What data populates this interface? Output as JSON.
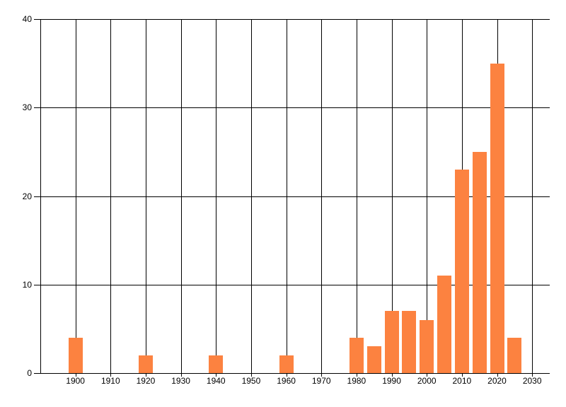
{
  "chart_data": {
    "type": "bar",
    "title": "",
    "xlabel": "",
    "ylabel": "",
    "x": [
      1900,
      1920,
      1940,
      1960,
      1980,
      1985,
      1990,
      1995,
      2000,
      2005,
      2010,
      2015,
      2020,
      2025
    ],
    "values": [
      4,
      2,
      2,
      2,
      4,
      3,
      7,
      7,
      6,
      11,
      23,
      25,
      35,
      4
    ],
    "x_ticks": [
      1900,
      1910,
      1920,
      1930,
      1940,
      1950,
      1960,
      1970,
      1980,
      1990,
      2000,
      2010,
      2020,
      2030
    ],
    "y_ticks": [
      0,
      10,
      20,
      30,
      40
    ],
    "xlim": [
      1890,
      2035
    ],
    "ylim": [
      0,
      40
    ],
    "grid": true,
    "legend_position": "none",
    "colors": {
      "bar": "#fc8240",
      "grid": "#000000",
      "axis": "#000000",
      "tick_label": "#000000",
      "background": "#ffffff"
    }
  }
}
